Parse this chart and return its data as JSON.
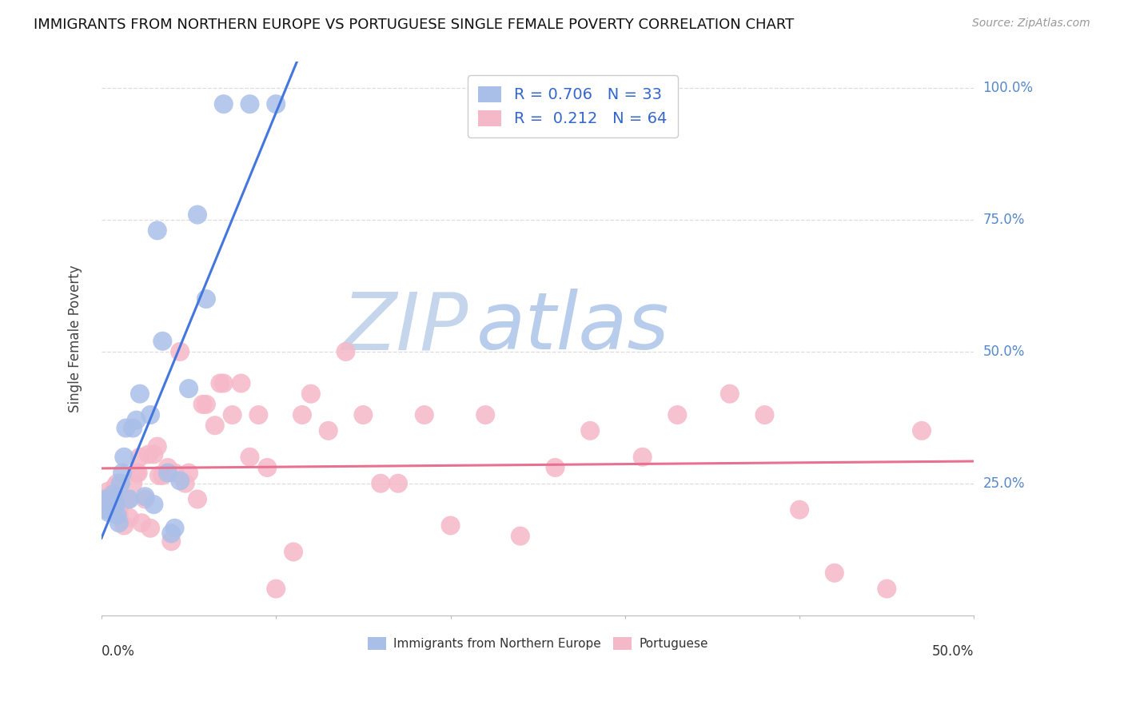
{
  "title": "IMMIGRANTS FROM NORTHERN EUROPE VS PORTUGUESE SINGLE FEMALE POVERTY CORRELATION CHART",
  "source": "Source: ZipAtlas.com",
  "ylabel": "Single Female Poverty",
  "legend_labels": [
    "Immigrants from Northern Europe",
    "Portuguese"
  ],
  "blue_R": "0.706",
  "blue_N": "33",
  "pink_R": "0.212",
  "pink_N": "64",
  "blue_scatter_x": [
    0.001,
    0.002,
    0.003,
    0.004,
    0.005,
    0.006,
    0.007,
    0.008,
    0.009,
    0.01,
    0.011,
    0.012,
    0.013,
    0.014,
    0.016,
    0.018,
    0.02,
    0.022,
    0.025,
    0.028,
    0.03,
    0.032,
    0.035,
    0.038,
    0.04,
    0.042,
    0.045,
    0.05,
    0.055,
    0.06,
    0.07,
    0.085,
    0.1
  ],
  "blue_scatter_y": [
    0.215,
    0.22,
    0.2,
    0.195,
    0.215,
    0.22,
    0.23,
    0.21,
    0.19,
    0.175,
    0.25,
    0.27,
    0.3,
    0.355,
    0.22,
    0.355,
    0.37,
    0.42,
    0.225,
    0.38,
    0.21,
    0.73,
    0.52,
    0.27,
    0.155,
    0.165,
    0.255,
    0.43,
    0.76,
    0.6,
    0.97,
    0.97,
    0.97
  ],
  "pink_scatter_x": [
    0.002,
    0.004,
    0.005,
    0.006,
    0.007,
    0.008,
    0.009,
    0.01,
    0.011,
    0.013,
    0.015,
    0.016,
    0.018,
    0.02,
    0.021,
    0.022,
    0.023,
    0.025,
    0.027,
    0.028,
    0.03,
    0.032,
    0.033,
    0.035,
    0.038,
    0.04,
    0.042,
    0.045,
    0.048,
    0.05,
    0.055,
    0.058,
    0.06,
    0.065,
    0.068,
    0.07,
    0.075,
    0.08,
    0.085,
    0.09,
    0.095,
    0.1,
    0.11,
    0.115,
    0.12,
    0.13,
    0.14,
    0.15,
    0.16,
    0.17,
    0.185,
    0.2,
    0.22,
    0.24,
    0.26,
    0.28,
    0.31,
    0.33,
    0.36,
    0.38,
    0.4,
    0.42,
    0.45,
    0.47
  ],
  "pink_scatter_y": [
    0.22,
    0.235,
    0.215,
    0.23,
    0.22,
    0.245,
    0.25,
    0.19,
    0.21,
    0.17,
    0.22,
    0.185,
    0.25,
    0.27,
    0.27,
    0.3,
    0.175,
    0.22,
    0.305,
    0.165,
    0.305,
    0.32,
    0.265,
    0.265,
    0.28,
    0.14,
    0.27,
    0.5,
    0.25,
    0.27,
    0.22,
    0.4,
    0.4,
    0.36,
    0.44,
    0.44,
    0.38,
    0.44,
    0.3,
    0.38,
    0.28,
    0.05,
    0.12,
    0.38,
    0.42,
    0.35,
    0.5,
    0.38,
    0.25,
    0.25,
    0.38,
    0.17,
    0.38,
    0.15,
    0.28,
    0.35,
    0.3,
    0.38,
    0.42,
    0.38,
    0.2,
    0.08,
    0.05,
    0.35
  ],
  "blue_color": "#aabfe8",
  "pink_color": "#f5b8c8",
  "blue_line_color": "#4477dd",
  "pink_line_color": "#e87090",
  "watermark_zip_color": "#c8d8f0",
  "watermark_atlas_color": "#b0cce8",
  "background_color": "#ffffff",
  "grid_color": "#dddddd",
  "right_label_color": "#5588cc",
  "xmin": 0.0,
  "xmax": 0.5,
  "ymin": 0.0,
  "ymax": 1.05
}
